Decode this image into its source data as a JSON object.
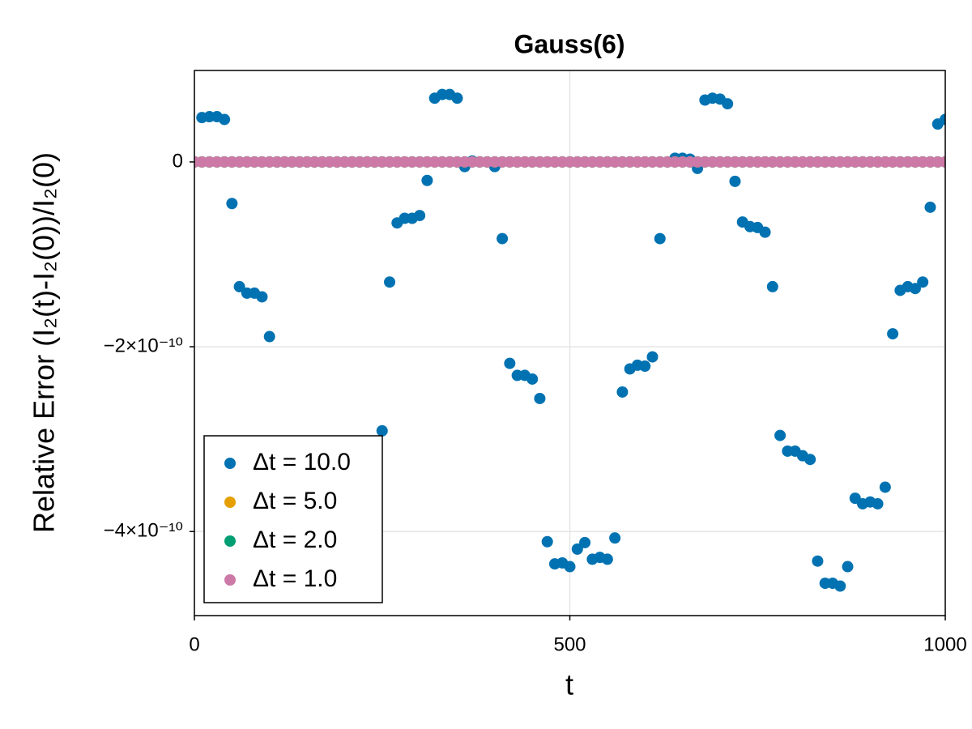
{
  "chart_data": {
    "type": "scatter",
    "title": "Gauss(6)",
    "xlabel": "t",
    "ylabel": "Relative Error (I₂(t)-I₂(0))/I₂(0)",
    "x": [
      0,
      10,
      20,
      30,
      40,
      50,
      60,
      70,
      80,
      90,
      100,
      110,
      120,
      130,
      140,
      150,
      160,
      170,
      180,
      190,
      200,
      210,
      220,
      230,
      240,
      250,
      260,
      270,
      280,
      290,
      300,
      310,
      320,
      330,
      340,
      350,
      360,
      370,
      380,
      390,
      400,
      410,
      420,
      430,
      440,
      450,
      460,
      470,
      480,
      490,
      500,
      510,
      520,
      530,
      540,
      550,
      560,
      570,
      580,
      590,
      600,
      610,
      620,
      630,
      640,
      650,
      660,
      670,
      680,
      690,
      700,
      710,
      720,
      730,
      740,
      750,
      760,
      770,
      780,
      790,
      800,
      810,
      820,
      830,
      840,
      850,
      860,
      870,
      880,
      890,
      900,
      910,
      920,
      930,
      940,
      950,
      960,
      970,
      980,
      990,
      1000
    ],
    "series": [
      {
        "name": "Δt = 10.0",
        "color": "#0072b2",
        "values": [
          0,
          4.8e-11,
          4.9e-11,
          4.9e-11,
          4.6e-11,
          -4.5e-11,
          -1.35e-10,
          -1.42e-10,
          -1.42e-10,
          -1.46e-10,
          -1.89e-10,
          0,
          0,
          0,
          0,
          0,
          0,
          0,
          0,
          0,
          0,
          0,
          0,
          0,
          0,
          -2.91e-10,
          -1.3e-10,
          -6.6e-11,
          -6.1e-11,
          -6.1e-11,
          -5.8e-11,
          -2e-11,
          6.9e-11,
          7.3e-11,
          7.3e-11,
          6.9e-11,
          -5e-12,
          1e-12,
          0,
          0,
          -5e-12,
          -8.3e-11,
          -2.18e-10,
          -2.31e-10,
          -2.31e-10,
          -2.35e-10,
          -2.56e-10,
          -4.11e-10,
          -4.35e-10,
          -4.34e-10,
          -4.38e-10,
          -4.19e-10,
          -4.12e-10,
          -4.3e-10,
          -4.28e-10,
          -4.3e-10,
          -4.07e-10,
          -2.49e-10,
          -2.24e-10,
          -2.2e-10,
          -2.21e-10,
          -2.11e-10,
          -8.3e-11,
          0,
          4e-12,
          4e-12,
          3e-12,
          -7e-12,
          6.7e-11,
          6.9e-11,
          6.8e-11,
          6.3e-11,
          -2.1e-11,
          -6.5e-11,
          -7e-11,
          -7.1e-11,
          -7.6e-11,
          -1.35e-10,
          -2.96e-10,
          -3.13e-10,
          -3.13e-10,
          -3.18e-10,
          -3.22e-10,
          -4.32e-10,
          -4.56e-10,
          -4.56e-10,
          -4.59e-10,
          -4.38e-10,
          -3.64e-10,
          -3.7e-10,
          -3.68e-10,
          -3.7e-10,
          -3.52e-10,
          -1.86e-10,
          -1.39e-10,
          -1.35e-10,
          -1.37e-10,
          -1.3e-10,
          -4.9e-11,
          4.1e-11,
          4.6e-11
        ]
      },
      {
        "name": "Δt = 5.0",
        "color": "#e69f00",
        "values": [
          0,
          0,
          0,
          0,
          0,
          0,
          0,
          0,
          0,
          0,
          0,
          0,
          0,
          0,
          0,
          0,
          0,
          0,
          0,
          0,
          0,
          0,
          0,
          0,
          0,
          0,
          0,
          0,
          0,
          0,
          0,
          0,
          0,
          0,
          0,
          0,
          0,
          0,
          0,
          0,
          0,
          0,
          0,
          0,
          0,
          0,
          0,
          0,
          0,
          0,
          0,
          0,
          0,
          0,
          0,
          0,
          0,
          0,
          0,
          0,
          0,
          0,
          0,
          0,
          0,
          0,
          0,
          0,
          0,
          0,
          0,
          0,
          0,
          0,
          0,
          0,
          0,
          0,
          0,
          0,
          0,
          0,
          0,
          0,
          0,
          0,
          0,
          0,
          0,
          0,
          0,
          0,
          0,
          0,
          0,
          0,
          0,
          0,
          0,
          0,
          0
        ]
      },
      {
        "name": "Δt = 2.0",
        "color": "#009e73",
        "values": [
          0,
          0,
          0,
          0,
          0,
          0,
          0,
          0,
          0,
          0,
          0,
          0,
          0,
          0,
          0,
          0,
          0,
          0,
          0,
          0,
          0,
          0,
          0,
          0,
          0,
          0,
          0,
          0,
          0,
          0,
          0,
          0,
          0,
          0,
          0,
          0,
          0,
          0,
          0,
          0,
          0,
          0,
          0,
          0,
          0,
          0,
          0,
          0,
          0,
          0,
          0,
          0,
          0,
          0,
          0,
          0,
          0,
          0,
          0,
          0,
          0,
          0,
          0,
          0,
          0,
          0,
          0,
          0,
          0,
          0,
          0,
          0,
          0,
          0,
          0,
          0,
          0,
          0,
          0,
          0,
          0,
          0,
          0,
          0,
          0,
          0,
          0,
          0,
          0,
          0,
          0,
          0,
          0,
          0,
          0,
          0,
          0,
          0,
          0,
          0,
          0
        ]
      },
      {
        "name": "Δt = 1.0",
        "color": "#cc79a7",
        "values": [
          0,
          0,
          0,
          0,
          0,
          0,
          0,
          0,
          0,
          0,
          0,
          0,
          0,
          0,
          0,
          0,
          0,
          0,
          0,
          0,
          0,
          0,
          0,
          0,
          0,
          0,
          0,
          0,
          0,
          0,
          0,
          0,
          0,
          0,
          0,
          0,
          0,
          0,
          0,
          0,
          0,
          0,
          0,
          0,
          0,
          0,
          0,
          0,
          0,
          0,
          0,
          0,
          0,
          0,
          0,
          0,
          0,
          0,
          0,
          0,
          0,
          0,
          0,
          0,
          0,
          0,
          0,
          0,
          0,
          0,
          0,
          0,
          0,
          0,
          0,
          0,
          0,
          0,
          0,
          0,
          0,
          0,
          0,
          0,
          0,
          0,
          0,
          0,
          0,
          0,
          0,
          0,
          0,
          0,
          0,
          0,
          0,
          0,
          0,
          0,
          0
        ]
      }
    ],
    "xlim": [
      0,
      1000
    ],
    "xticks": [
      0,
      500,
      1000
    ],
    "ylim": [
      -4.91e-10,
      9.9e-11
    ],
    "yticks": [
      {
        "value": -4e-10,
        "label": "−4×10⁻¹⁰"
      },
      {
        "value": -2e-10,
        "label": "−2×10⁻¹⁰"
      },
      0
    ],
    "grid": true,
    "legend": "lower left"
  }
}
